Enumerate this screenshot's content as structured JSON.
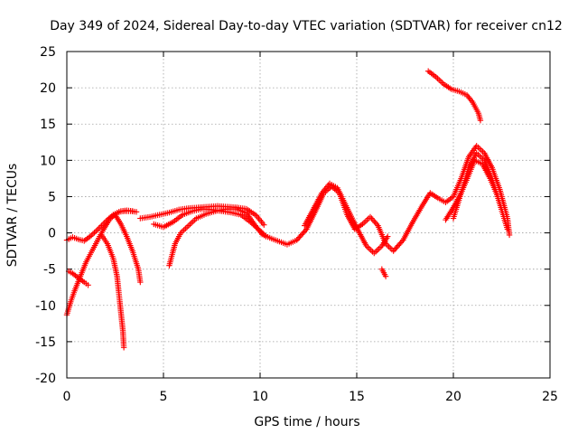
{
  "chart_data": {
    "type": "scatter",
    "title": "Day 349 of 2024, Sidereal Day-to-day VTEC variation (SDTVAR) for receiver cn12",
    "xlabel": "GPS time / hours",
    "ylabel": "SDTVAR / TECUs",
    "xlim": [
      0,
      25
    ],
    "ylim": [
      -20,
      25
    ],
    "xticks": [
      0,
      5,
      10,
      15,
      20,
      25
    ],
    "yticks": [
      -20,
      -15,
      -10,
      -5,
      0,
      5,
      10,
      15,
      20,
      25
    ],
    "grid": true,
    "marker": "+",
    "color": "#ff0000",
    "series": [
      {
        "name": "early-flat",
        "points": [
          [
            0.0,
            -1.0
          ],
          [
            0.3,
            -0.6
          ],
          [
            0.6,
            -0.9
          ],
          [
            0.9,
            -1.1
          ],
          [
            1.2,
            -0.5
          ],
          [
            1.5,
            0.2
          ],
          [
            1.8,
            1.0
          ],
          [
            2.1,
            1.8
          ],
          [
            2.4,
            2.5
          ],
          [
            2.7,
            2.9
          ],
          [
            3.0,
            3.0
          ],
          [
            3.3,
            3.0
          ],
          [
            3.6,
            2.9
          ]
        ]
      },
      {
        "name": "early-steep",
        "points": [
          [
            0.0,
            -11.3
          ],
          [
            0.2,
            -9.5
          ],
          [
            0.4,
            -8.0
          ],
          [
            0.7,
            -6.0
          ],
          [
            1.0,
            -4.0
          ],
          [
            1.3,
            -2.5
          ],
          [
            1.6,
            -1.0
          ],
          [
            1.9,
            0.5
          ],
          [
            2.2,
            1.8
          ],
          [
            2.5,
            2.6
          ],
          [
            2.8,
            3.0
          ],
          [
            3.1,
            3.1
          ],
          [
            3.4,
            3.0
          ]
        ]
      },
      {
        "name": "early-mid",
        "points": [
          [
            0.1,
            -5.3
          ],
          [
            0.3,
            -5.6
          ],
          [
            0.6,
            -6.2
          ],
          [
            0.9,
            -6.8
          ],
          [
            1.1,
            -7.2
          ]
        ]
      },
      {
        "name": "dip-track",
        "points": [
          [
            1.8,
            -0.3
          ],
          [
            2.1,
            -1.5
          ],
          [
            2.4,
            -3.5
          ],
          [
            2.6,
            -6.0
          ],
          [
            2.7,
            -8.5
          ],
          [
            2.8,
            -11.0
          ],
          [
            2.9,
            -13.5
          ],
          [
            2.95,
            -15.8
          ]
        ]
      },
      {
        "name": "short-track",
        "points": [
          [
            2.5,
            2.5
          ],
          [
            2.8,
            1.2
          ],
          [
            3.1,
            -0.5
          ],
          [
            3.4,
            -2.5
          ],
          [
            3.7,
            -5.0
          ],
          [
            3.8,
            -6.8
          ]
        ]
      },
      {
        "name": "hump-a",
        "points": [
          [
            3.8,
            2.0
          ],
          [
            4.3,
            2.2
          ],
          [
            4.8,
            2.5
          ],
          [
            5.3,
            2.8
          ],
          [
            5.8,
            3.2
          ],
          [
            6.3,
            3.4
          ],
          [
            6.8,
            3.5
          ],
          [
            7.3,
            3.6
          ],
          [
            7.8,
            3.7
          ],
          [
            8.3,
            3.6
          ],
          [
            8.8,
            3.5
          ],
          [
            9.3,
            3.3
          ],
          [
            9.8,
            2.4
          ],
          [
            10.2,
            1.1
          ]
        ]
      },
      {
        "name": "hump-b",
        "points": [
          [
            5.3,
            -4.5
          ],
          [
            5.6,
            -1.5
          ],
          [
            5.9,
            0.0
          ],
          [
            6.3,
            1.0
          ],
          [
            6.7,
            2.0
          ],
          [
            7.2,
            2.6
          ],
          [
            7.7,
            3.0
          ],
          [
            8.3,
            3.3
          ],
          [
            8.8,
            3.3
          ],
          [
            9.3,
            2.7
          ],
          [
            9.7,
            1.2
          ],
          [
            10.1,
            -0.2
          ],
          [
            10.6,
            -0.8
          ],
          [
            11.0,
            -1.2
          ],
          [
            11.4,
            -1.6
          ],
          [
            11.9,
            -1.0
          ],
          [
            12.4,
            0.5
          ],
          [
            12.9,
            3.2
          ],
          [
            13.3,
            5.5
          ],
          [
            13.7,
            6.4
          ],
          [
            14.1,
            5.5
          ],
          [
            14.5,
            2.5
          ],
          [
            14.9,
            0.5
          ],
          [
            15.3,
            1.2
          ],
          [
            15.7,
            2.2
          ],
          [
            16.1,
            1.0
          ],
          [
            16.5,
            -1.5
          ],
          [
            16.9,
            -2.5
          ],
          [
            17.4,
            -1.0
          ],
          [
            17.9,
            1.5
          ],
          [
            18.4,
            3.8
          ],
          [
            18.8,
            5.5
          ],
          [
            19.2,
            4.8
          ],
          [
            19.6,
            4.2
          ],
          [
            20.0,
            5.0
          ],
          [
            20.4,
            7.5
          ],
          [
            20.8,
            10.5
          ],
          [
            21.2,
            12.0
          ],
          [
            21.6,
            11.0
          ],
          [
            22.0,
            9.0
          ],
          [
            22.4,
            6.0
          ],
          [
            22.8,
            2.0
          ],
          [
            22.9,
            -0.3
          ]
        ]
      },
      {
        "name": "hump-c",
        "points": [
          [
            4.5,
            1.2
          ],
          [
            5.0,
            0.8
          ],
          [
            5.5,
            1.5
          ],
          [
            6.0,
            2.5
          ],
          [
            6.5,
            3.0
          ],
          [
            7.0,
            3.3
          ],
          [
            7.5,
            3.2
          ],
          [
            8.0,
            3.0
          ],
          [
            8.5,
            2.8
          ],
          [
            9.0,
            2.5
          ],
          [
            9.5,
            1.5
          ],
          [
            10.0,
            0.3
          ],
          [
            10.3,
            -0.5
          ]
        ]
      },
      {
        "name": "hump-d",
        "points": [
          [
            12.3,
            1.0
          ],
          [
            12.8,
            3.5
          ],
          [
            13.2,
            5.5
          ],
          [
            13.6,
            6.8
          ],
          [
            14.0,
            6.2
          ],
          [
            14.4,
            4.0
          ],
          [
            14.8,
            1.8
          ],
          [
            15.1,
            0.2
          ],
          [
            15.5,
            -1.8
          ],
          [
            15.9,
            -2.8
          ],
          [
            16.3,
            -1.8
          ],
          [
            16.6,
            -0.5
          ]
        ]
      },
      {
        "name": "short-dip",
        "points": [
          [
            16.3,
            -5.0
          ],
          [
            16.5,
            -6.0
          ]
        ]
      },
      {
        "name": "late-a",
        "points": [
          [
            20.0,
            2.0
          ],
          [
            20.4,
            5.5
          ],
          [
            20.8,
            9.0
          ],
          [
            21.2,
            11.0
          ],
          [
            21.6,
            10.0
          ],
          [
            22.0,
            7.5
          ],
          [
            22.4,
            4.0
          ],
          [
            22.8,
            0.5
          ]
        ]
      },
      {
        "name": "late-b",
        "points": [
          [
            19.6,
            1.8
          ],
          [
            20.0,
            3.5
          ],
          [
            20.4,
            5.5
          ],
          [
            20.8,
            8.0
          ],
          [
            21.1,
            10.0
          ],
          [
            21.5,
            9.5
          ],
          [
            21.9,
            7.5
          ],
          [
            22.3,
            5.0
          ]
        ]
      },
      {
        "name": "top-track",
        "points": [
          [
            18.7,
            22.3
          ],
          [
            19.1,
            21.5
          ],
          [
            19.5,
            20.5
          ],
          [
            19.9,
            19.8
          ],
          [
            20.3,
            19.5
          ],
          [
            20.7,
            19.0
          ],
          [
            21.0,
            18.0
          ],
          [
            21.3,
            16.5
          ],
          [
            21.4,
            15.5
          ]
        ]
      }
    ]
  }
}
